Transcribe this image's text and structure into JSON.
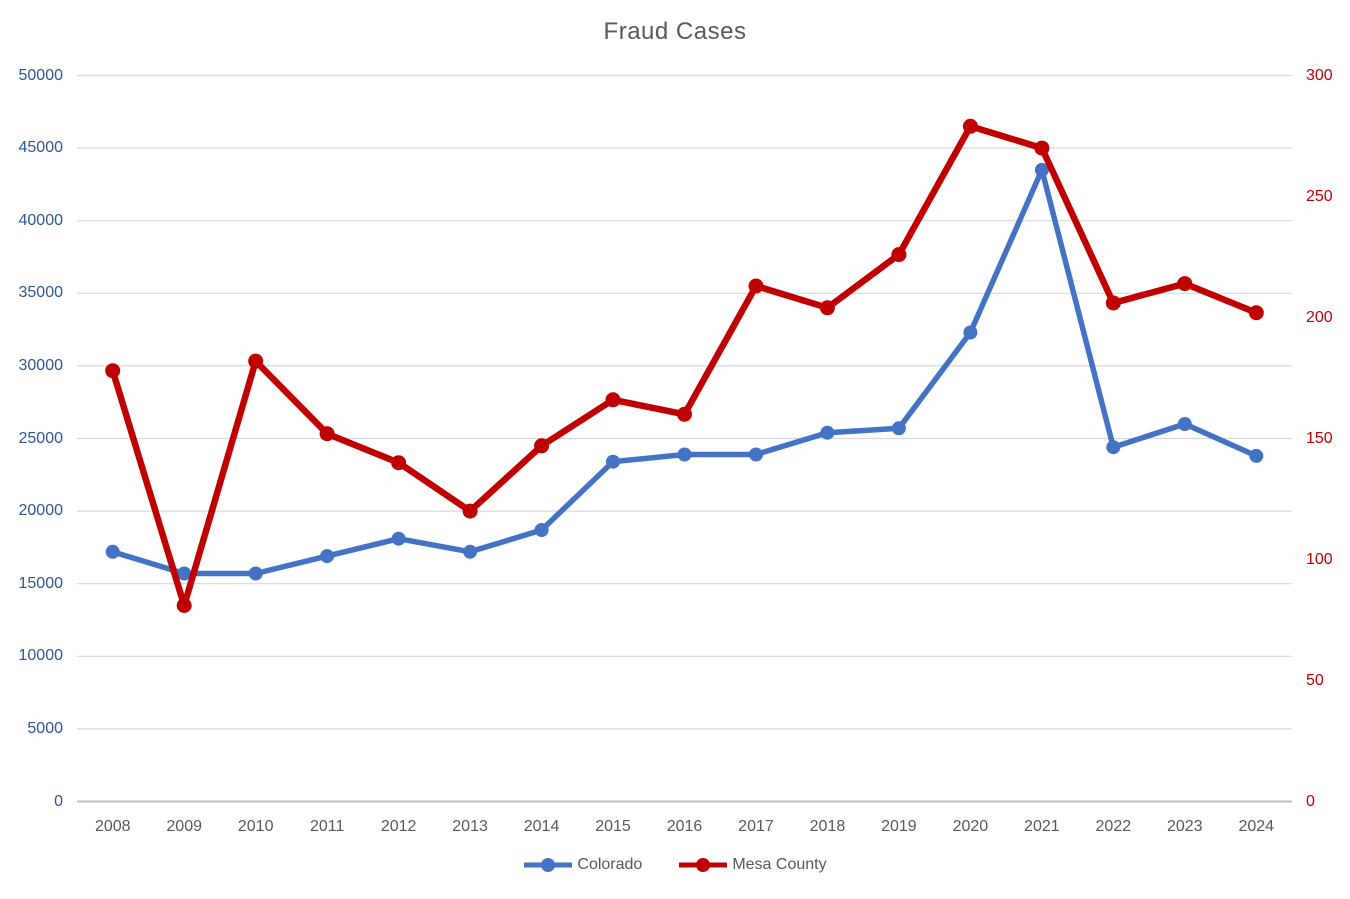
{
  "title": "Fraud Cases",
  "colors": {
    "colorado_series": "#4472C4",
    "mesa_series": "#C00000",
    "left_axis_text": "#2F5597",
    "right_axis_text": "#C00000",
    "general_text": "#595959",
    "gridline": "#D9D9D9",
    "axis_line": "#BFBFBF",
    "background": "#FFFFFF"
  },
  "chart_data": {
    "type": "line",
    "title": "Fraud Cases",
    "categories": [
      "2008",
      "2009",
      "2010",
      "2011",
      "2012",
      "2013",
      "2014",
      "2015",
      "2016",
      "2017",
      "2018",
      "2019",
      "2020",
      "2021",
      "2022",
      "2023",
      "2024"
    ],
    "series": [
      {
        "name": "Colorado",
        "axis": "left",
        "color": "#4472C4",
        "values": [
          17200,
          15700,
          15700,
          16900,
          18100,
          17200,
          18700,
          23400,
          23900,
          23900,
          25400,
          25700,
          32300,
          43500,
          24400,
          26000,
          23800
        ]
      },
      {
        "name": "Mesa County",
        "axis": "right",
        "color": "#C00000",
        "values": [
          178,
          81,
          182,
          152,
          140,
          120,
          147,
          166,
          160,
          213,
          204,
          226,
          279,
          270,
          206,
          214,
          202
        ]
      }
    ],
    "left_axis": {
      "min": 0,
      "max": 50000,
      "step": 5000,
      "tick_labels": [
        "0",
        "5000",
        "10000",
        "15000",
        "20000",
        "25000",
        "30000",
        "35000",
        "40000",
        "45000",
        "50000"
      ],
      "text_color": "#2F5597"
    },
    "right_axis": {
      "min": 0,
      "max": 300,
      "step": 50,
      "tick_labels": [
        "0",
        "50",
        "100",
        "150",
        "200",
        "250",
        "300"
      ],
      "text_color": "#C00000"
    },
    "grid": true,
    "legend_position": "bottom",
    "xlabel": "",
    "ylabel": ""
  }
}
